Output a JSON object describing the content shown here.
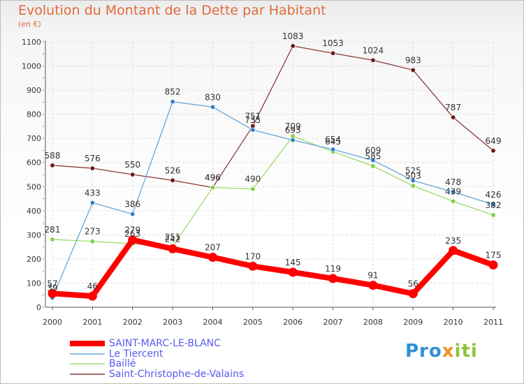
{
  "chart_data": {
    "type": "line",
    "title": "Evolution du Montant de la Dette par Habitant",
    "subtitle": "(en €)",
    "xlabel": "",
    "ylabel": "",
    "x": [
      "2000",
      "2001",
      "2002",
      "2003",
      "2004",
      "2005",
      "2006",
      "2007",
      "2008",
      "2009",
      "2010",
      "2011"
    ],
    "ylim": [
      0,
      1100
    ],
    "yticks": [
      0,
      100,
      200,
      300,
      400,
      500,
      600,
      700,
      800,
      900,
      1000,
      1100
    ],
    "grid": true,
    "legend_position": "bottom-left",
    "series": [
      {
        "name": "SAINT-MARC-LE-BLANC",
        "color": "#ff0000",
        "dot": "#ff0000",
        "width": 8,
        "values": [
          57,
          46,
          279,
          242,
          207,
          170,
          145,
          119,
          91,
          56,
          235,
          175
        ]
      },
      {
        "name": "Le Tiercent",
        "color": "#6aa6d6",
        "dot": "#2f80cc",
        "width": 1.3,
        "values": [
          39,
          433,
          386,
          852,
          830,
          735,
          693,
          654,
          609,
          525,
          478,
          426
        ]
      },
      {
        "name": "Baillé",
        "color": "#9ddc6a",
        "dot": "#80d040",
        "width": 1.3,
        "values": [
          281,
          273,
          263,
          251,
          496,
          490,
          709,
          645,
          585,
          503,
          439,
          382
        ]
      },
      {
        "name": "Saint-Christophe-de-Valains",
        "color": "#8a3a3a",
        "dot": "#6a1515",
        "width": 1.3,
        "values": [
          588,
          576,
          550,
          526,
          496,
          751,
          1083,
          1053,
          1024,
          983,
          787,
          649
        ]
      }
    ]
  },
  "brand": {
    "part1": "Pro",
    "part2": "x",
    "part3": "iti"
  }
}
